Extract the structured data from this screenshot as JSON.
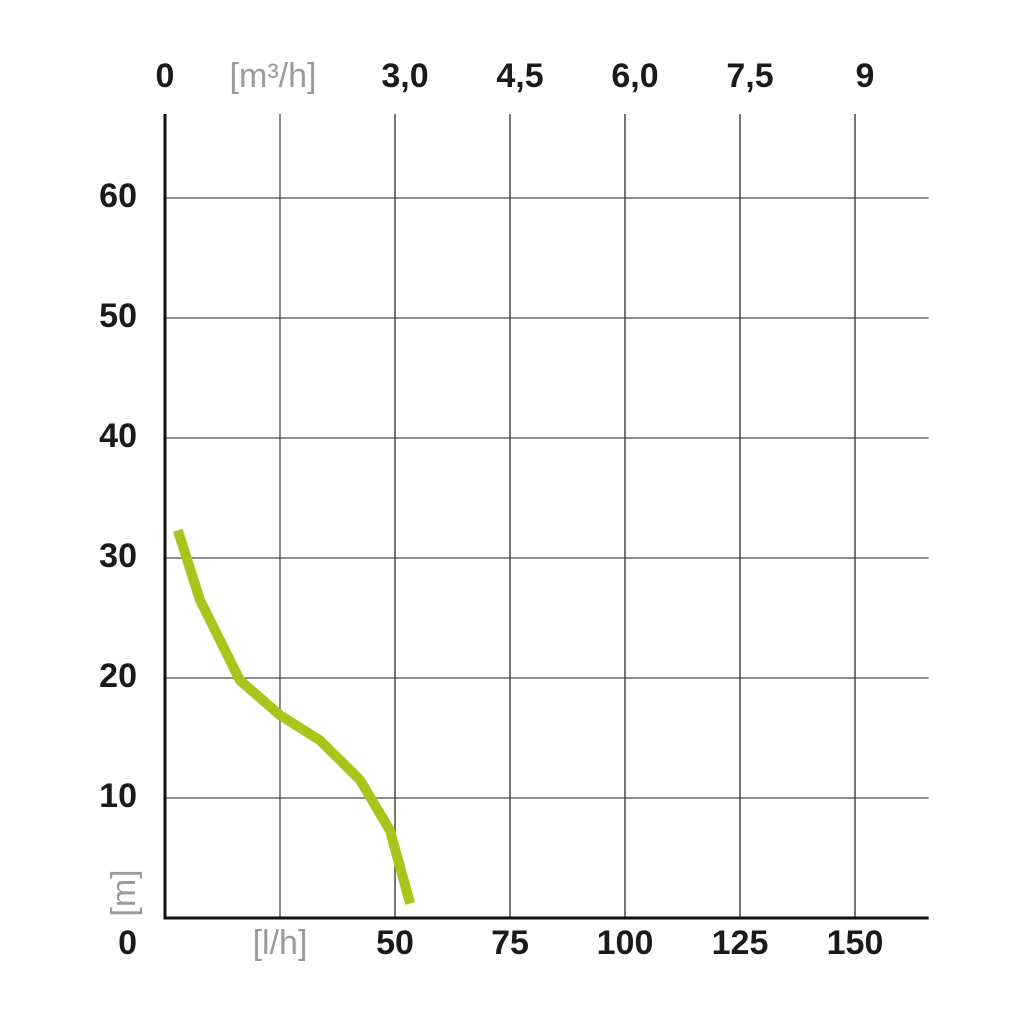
{
  "chart_data": {
    "type": "line",
    "x_label": "[l/h]",
    "x2_label": "[m³/h]",
    "y_label": "[m]",
    "x": [
      2.8,
      7.6,
      16.3,
      25,
      33.7,
      42.4,
      48.9,
      53.3
    ],
    "series": [
      {
        "color": "#aac41c",
        "values": [
          32.3,
          26.5,
          19.8,
          16.9,
          14.8,
          11.5,
          7.3,
          1.2
        ]
      }
    ],
    "xlim": [
      0,
      166
    ],
    "xticks": [
      50,
      75,
      100,
      125,
      150
    ],
    "x2lim": [
      0,
      9.96
    ],
    "x2ticks": [
      0,
      {
        "value": 3,
        "label": "3,0"
      },
      {
        "value": 4.5,
        "label": "4,5"
      },
      {
        "value": 6,
        "label": "6,0"
      },
      {
        "value": 7.5,
        "label": "7,5"
      },
      9
    ],
    "ylim": [
      0,
      67
    ],
    "yticks": [
      0,
      10,
      20,
      30,
      40,
      50,
      60
    ],
    "grid": true
  }
}
